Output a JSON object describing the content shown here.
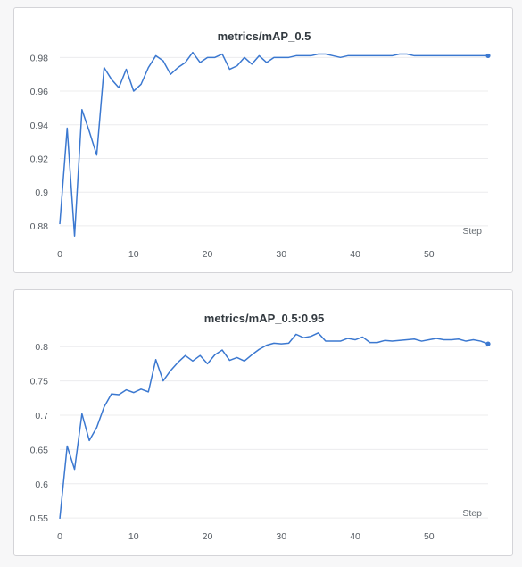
{
  "chart_data": [
    {
      "type": "line",
      "title": "metrics/mAP_0.5",
      "xlabel": "Step",
      "ylabel": "",
      "xlim": [
        0,
        58
      ],
      "ylim": [
        0.872,
        0.986
      ],
      "xticks": [
        0,
        10,
        20,
        30,
        40,
        50
      ],
      "xtick_labels": [
        "0",
        "10",
        "20",
        "30",
        "40",
        "50"
      ],
      "yticks": [
        0.88,
        0.9,
        0.92,
        0.94,
        0.96,
        0.98
      ],
      "ytick_labels": [
        "0.88",
        "0.9",
        "0.92",
        "0.94",
        "0.96",
        "0.98"
      ],
      "grid": true,
      "color": "#3b78d0",
      "x": [
        0,
        1,
        2,
        3,
        4,
        5,
        6,
        7,
        8,
        9,
        10,
        11,
        12,
        13,
        14,
        15,
        16,
        17,
        18,
        19,
        20,
        21,
        22,
        23,
        24,
        25,
        26,
        27,
        28,
        29,
        30,
        31,
        32,
        33,
        34,
        35,
        36,
        37,
        38,
        39,
        40,
        41,
        42,
        43,
        44,
        45,
        46,
        47,
        48,
        49,
        50,
        51,
        52,
        53,
        54,
        55,
        56,
        57,
        58
      ],
      "y": [
        0.881,
        0.938,
        0.874,
        0.949,
        0.936,
        0.922,
        0.974,
        0.967,
        0.962,
        0.973,
        0.96,
        0.964,
        0.974,
        0.981,
        0.978,
        0.97,
        0.974,
        0.977,
        0.983,
        0.977,
        0.98,
        0.98,
        0.982,
        0.973,
        0.975,
        0.98,
        0.976,
        0.981,
        0.977,
        0.98,
        0.98,
        0.98,
        0.981,
        0.981,
        0.981,
        0.982,
        0.982,
        0.981,
        0.98,
        0.981,
        0.981,
        0.981,
        0.981,
        0.981,
        0.981,
        0.981,
        0.982,
        0.982,
        0.981,
        0.981,
        0.981,
        0.981,
        0.981,
        0.981,
        0.981,
        0.981,
        0.981,
        0.981,
        0.981
      ]
    },
    {
      "type": "line",
      "title": "metrics/mAP_0.5:0.95",
      "xlabel": "Step",
      "ylabel": "",
      "xlim": [
        0,
        58
      ],
      "ylim": [
        0.545,
        0.825
      ],
      "xticks": [
        0,
        10,
        20,
        30,
        40,
        50
      ],
      "xtick_labels": [
        "0",
        "10",
        "20",
        "30",
        "40",
        "50"
      ],
      "yticks": [
        0.55,
        0.6,
        0.65,
        0.7,
        0.75,
        0.8
      ],
      "ytick_labels": [
        "0.55",
        "0.6",
        "0.65",
        "0.7",
        "0.75",
        "0.8"
      ],
      "grid": true,
      "color": "#3b78d0",
      "x": [
        0,
        1,
        2,
        3,
        4,
        5,
        6,
        7,
        8,
        9,
        10,
        11,
        12,
        13,
        14,
        15,
        16,
        17,
        18,
        19,
        20,
        21,
        22,
        23,
        24,
        25,
        26,
        27,
        28,
        29,
        30,
        31,
        32,
        33,
        34,
        35,
        36,
        37,
        38,
        39,
        40,
        41,
        42,
        43,
        44,
        45,
        46,
        47,
        48,
        49,
        50,
        51,
        52,
        53,
        54,
        55,
        56,
        57,
        58
      ],
      "y": [
        0.549,
        0.655,
        0.621,
        0.702,
        0.663,
        0.682,
        0.712,
        0.731,
        0.73,
        0.737,
        0.733,
        0.738,
        0.734,
        0.781,
        0.75,
        0.765,
        0.777,
        0.787,
        0.779,
        0.787,
        0.775,
        0.788,
        0.795,
        0.78,
        0.784,
        0.779,
        0.788,
        0.796,
        0.802,
        0.805,
        0.804,
        0.805,
        0.818,
        0.813,
        0.815,
        0.82,
        0.808,
        0.808,
        0.808,
        0.812,
        0.81,
        0.814,
        0.806,
        0.806,
        0.809,
        0.808,
        0.809,
        0.81,
        0.811,
        0.808,
        0.81,
        0.812,
        0.81,
        0.81,
        0.811,
        0.808,
        0.81,
        0.808,
        0.804
      ]
    }
  ]
}
